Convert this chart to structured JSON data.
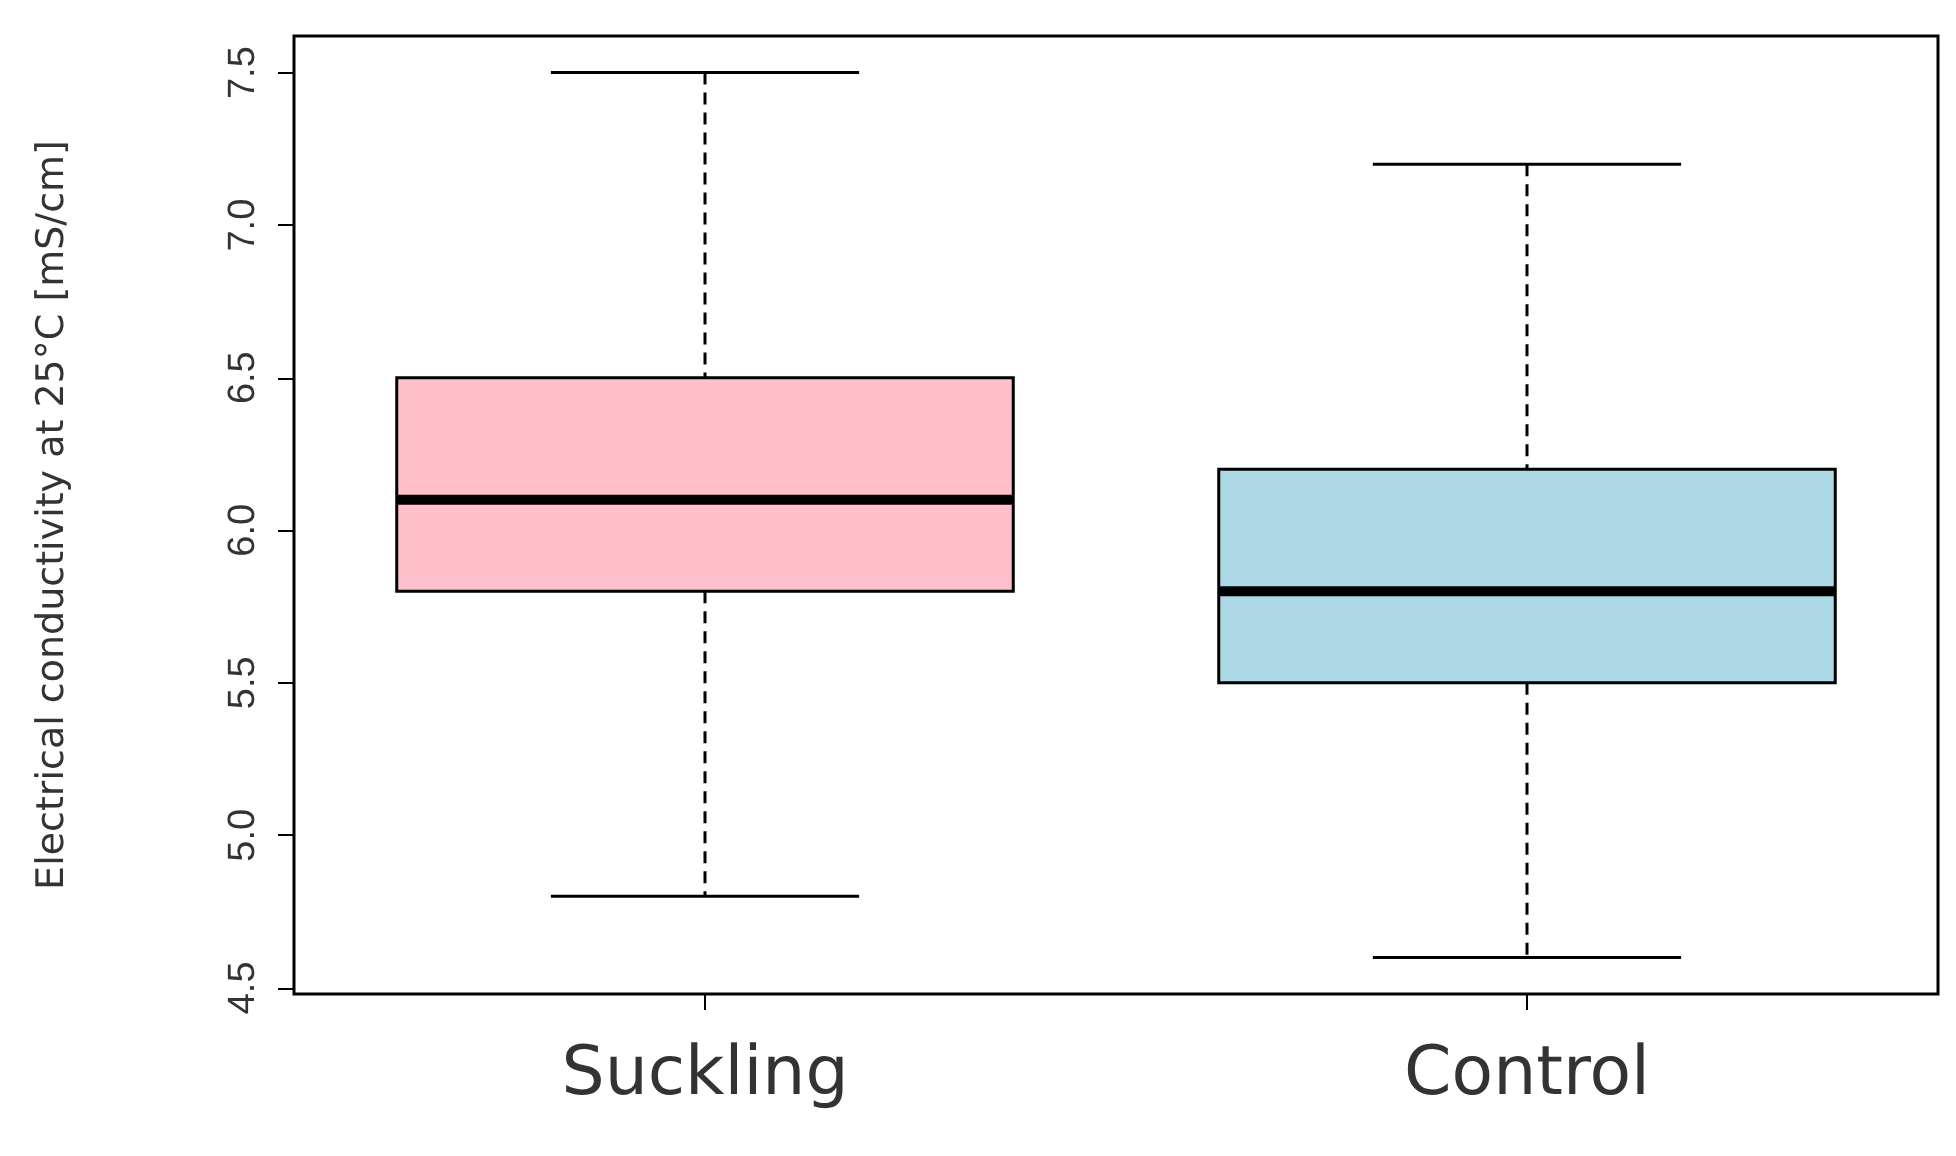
{
  "chart_data": {
    "type": "box",
    "ylabel": "Electrical conductivity at 25°C [mS/cm]",
    "categories": [
      "Suckling",
      "Control"
    ],
    "boxes": [
      {
        "low": 4.8,
        "q1": 5.8,
        "median": 6.1,
        "q3": 6.5,
        "high": 7.5
      },
      {
        "low": 4.6,
        "q1": 5.5,
        "median": 5.8,
        "q3": 6.2,
        "high": 7.2
      }
    ],
    "colors": [
      "#ffc0cb",
      "#add8e6"
    ],
    "ylim": [
      4.48,
      7.62
    ],
    "yticks": [
      {
        "value": 4.5,
        "label": "4.5"
      },
      {
        "value": 5,
        "label": "5.0"
      },
      {
        "value": 5.5,
        "label": "5.5"
      },
      {
        "value": 6,
        "label": "6.0"
      },
      {
        "value": 6.5,
        "label": "6.5"
      },
      {
        "value": 7,
        "label": "7.0"
      },
      {
        "value": 7.5,
        "label": "7.5"
      }
    ]
  }
}
